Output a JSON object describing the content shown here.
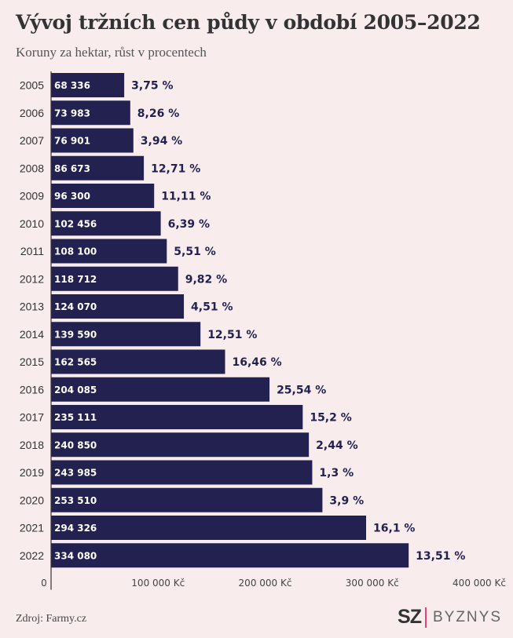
{
  "title": "Vývoj tržních cen půdy v období 2005–2022",
  "subtitle": "Koruny za hektar, růst v procentech",
  "source": "Zdroj: Farmy.cz",
  "logo": {
    "sz": "SZ",
    "byznys": "BYZNYS"
  },
  "colors": {
    "bar": "#232150",
    "background": "#f9ecec",
    "growth_label": "#232150",
    "logo_accent": "#e0457b"
  },
  "chart_data": {
    "type": "bar",
    "orientation": "horizontal",
    "categories": [
      "2005",
      "2006",
      "2007",
      "2008",
      "2009",
      "2010",
      "2011",
      "2012",
      "2013",
      "2014",
      "2015",
      "2016",
      "2017",
      "2018",
      "2019",
      "2020",
      "2021",
      "2022"
    ],
    "series": [
      {
        "values": [
          68336,
          73983,
          76901,
          86673,
          96300,
          102456,
          108100,
          118712,
          124070,
          139590,
          162565,
          204085,
          235111,
          240850,
          243985,
          253510,
          294326,
          334080
        ],
        "value_labels": [
          "68 336",
          "73 983",
          "76 901",
          "86 673",
          "96 300",
          "102 456",
          "108 100",
          "118 712",
          "124 070",
          "139 590",
          "162 565",
          "204 085",
          "235 111",
          "240 850",
          "243 985",
          "253 510",
          "294 326",
          "334 080"
        ],
        "growth_labels": [
          "3,75 %",
          "8,26 %",
          "3,94 %",
          "12,71 %",
          "11,11 %",
          "6,39 %",
          "5,51 %",
          "9,82 %",
          "4,51 %",
          "12,51 %",
          "16,46 %",
          "25,54 %",
          "15,2 %",
          "2,44 %",
          "1,3 %",
          "3,9 %",
          "16,1 %",
          "13,51 %"
        ]
      }
    ],
    "xaxis": {
      "ticks": [
        0,
        100000,
        200000,
        300000,
        400000
      ],
      "tick_labels": [
        "0",
        "100 000 Kč",
        "200 000 Kč",
        "300 000 Kč",
        "400 000 Kč"
      ]
    },
    "xlim": [
      0,
      400000
    ],
    "grid": false,
    "legend": "none"
  }
}
